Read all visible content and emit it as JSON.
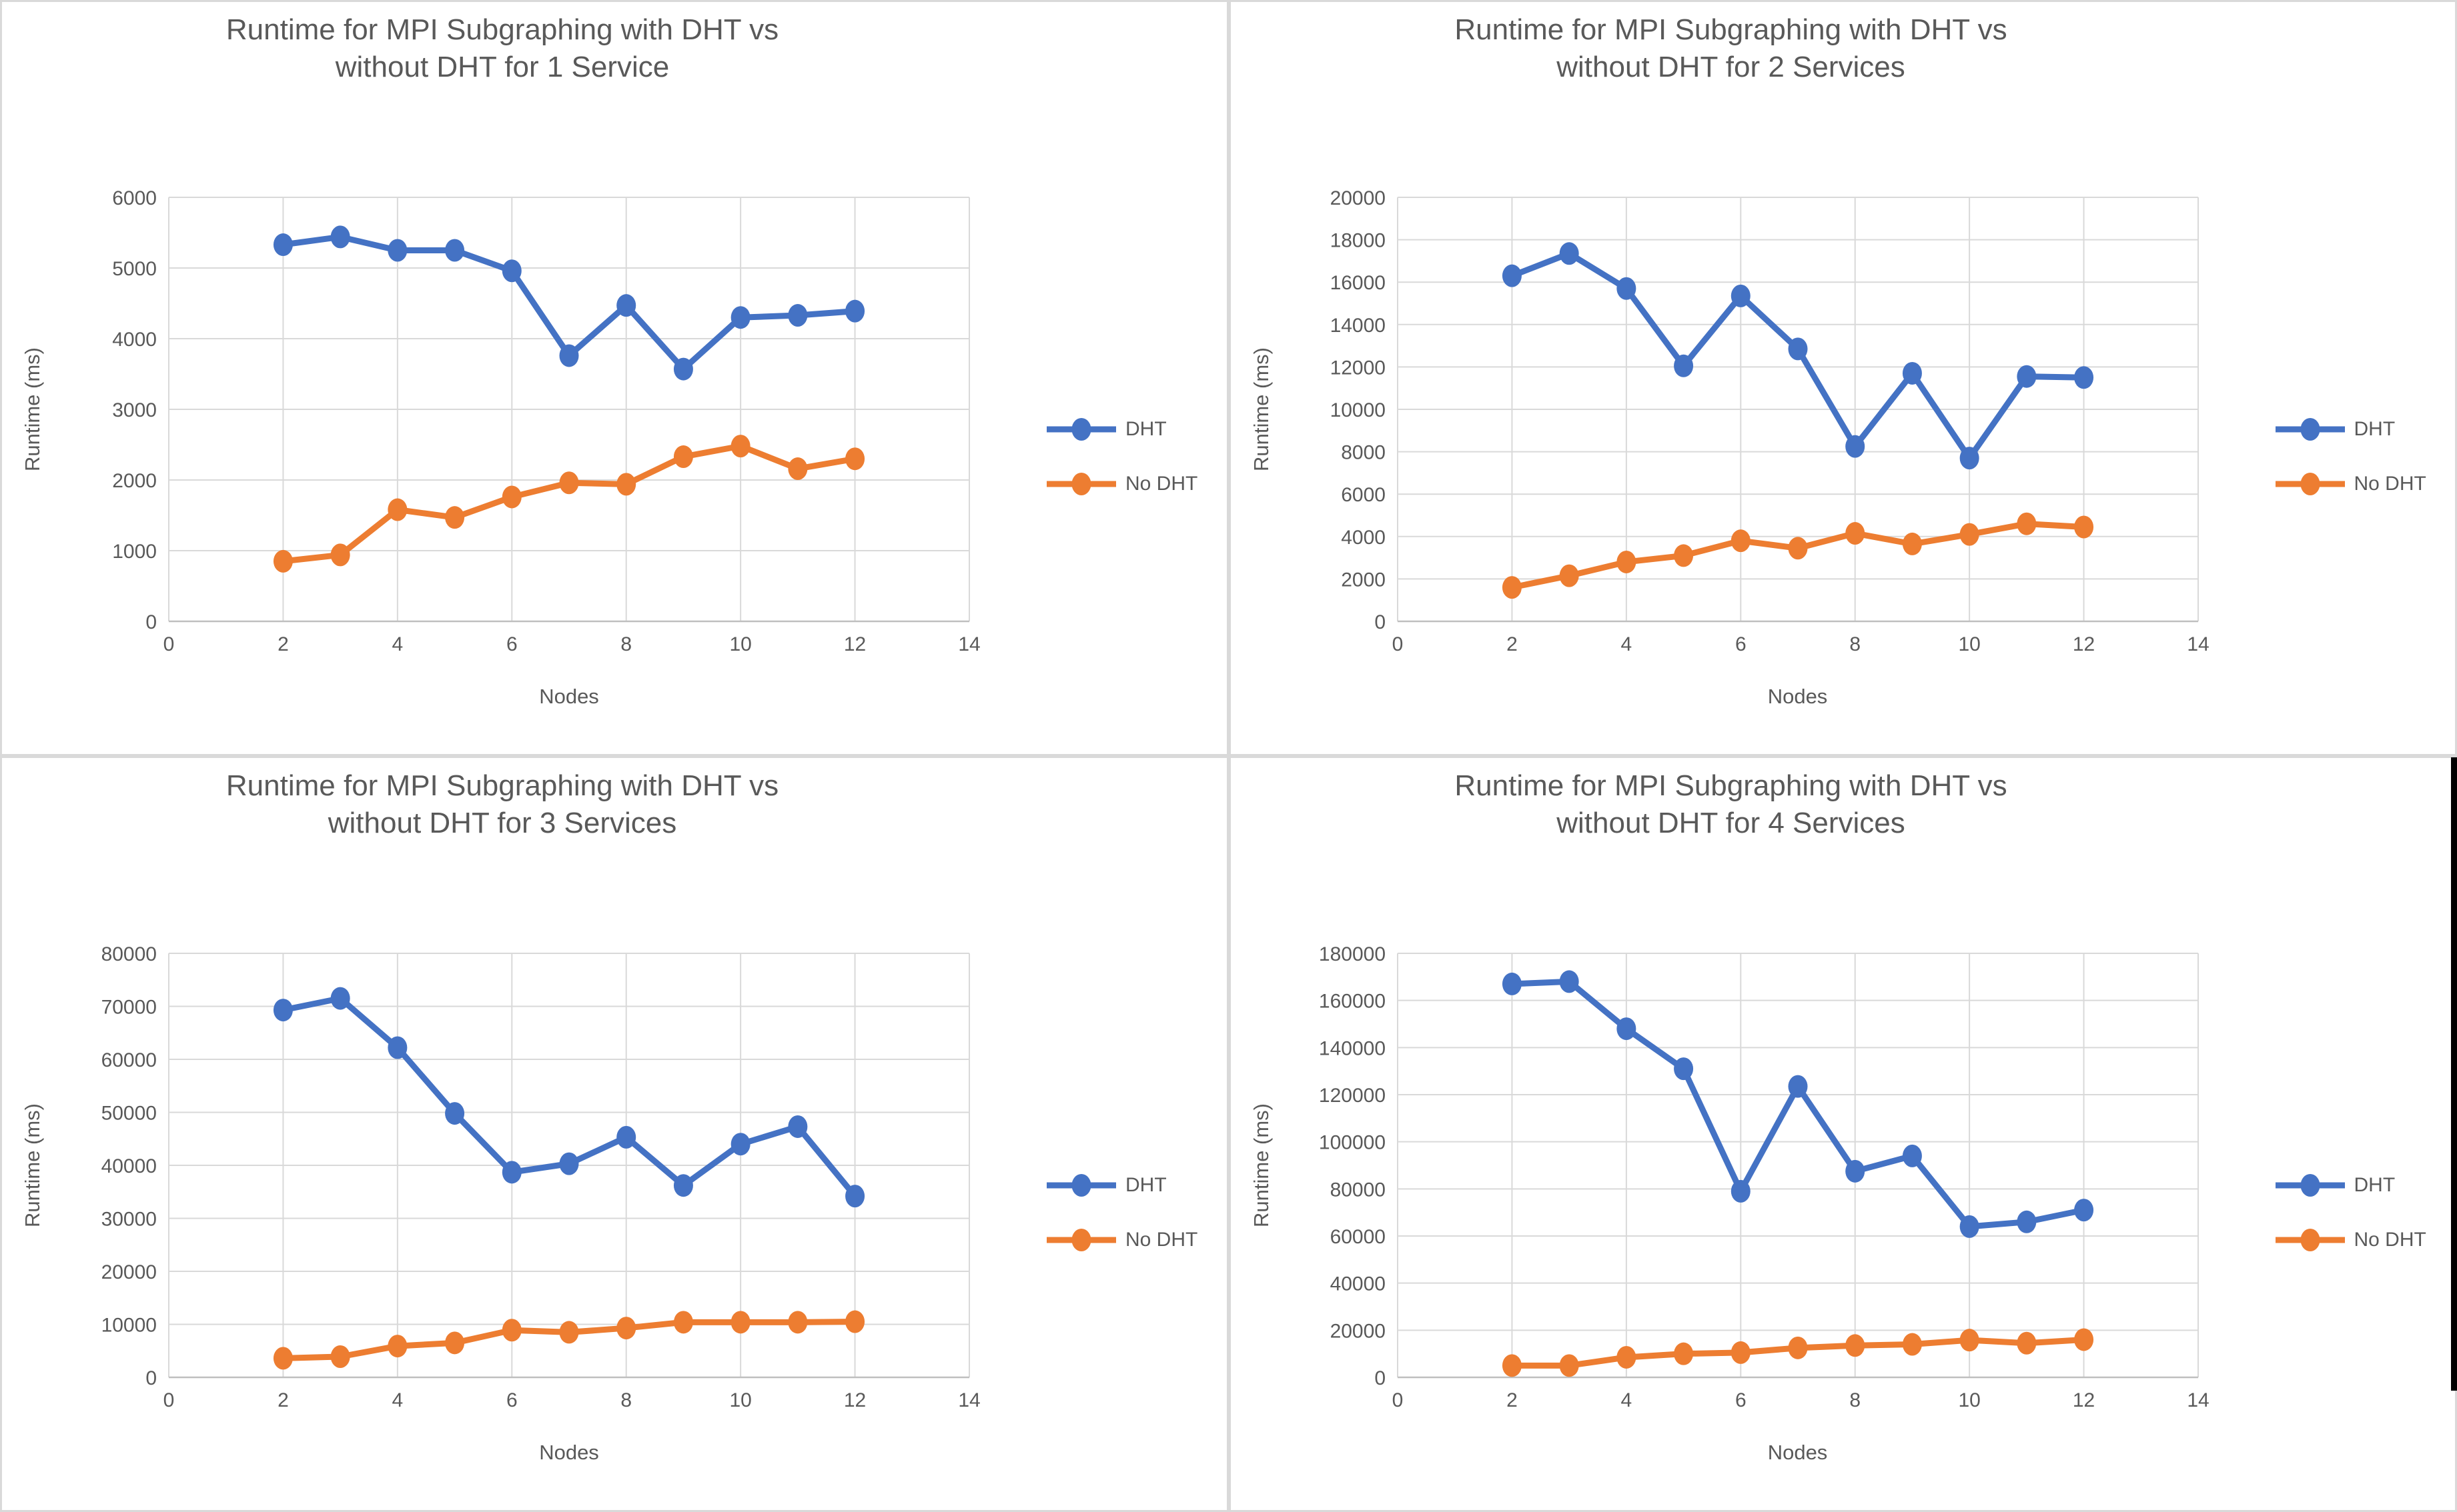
{
  "page": {
    "background_color": "#FFFFFF",
    "panel_border_color": "#D9D9D9",
    "gridline_color": "#D9D9D9",
    "axis_line_color": "#BFBFBF",
    "text_color": "#595959",
    "right_edge_bar_color": "#000000"
  },
  "chart_data": [
    {
      "type": "line",
      "title_lines": [
        "Runtime for MPI Subgraphing with DHT vs",
        "without DHT for 1 Service"
      ],
      "xlabel": "Nodes",
      "ylabel": "Runtime (ms)",
      "xlim": [
        0,
        14
      ],
      "ylim": [
        0,
        6000
      ],
      "x_ticks": [
        0,
        2,
        4,
        6,
        8,
        10,
        12,
        14
      ],
      "y_ticks": [
        0,
        1000,
        2000,
        3000,
        4000,
        5000,
        6000
      ],
      "grid": true,
      "legend_position": "right",
      "x": [
        2,
        3,
        4,
        5,
        6,
        7,
        8,
        9,
        10,
        11,
        12
      ],
      "series": [
        {
          "name": "DHT",
          "color": "#4472C4",
          "values": [
            5330,
            5440,
            5250,
            5250,
            4960,
            3760,
            4470,
            3570,
            4300,
            4330,
            4390
          ]
        },
        {
          "name": "No DHT",
          "color": "#ED7D31",
          "values": [
            850,
            940,
            1580,
            1470,
            1760,
            1960,
            1940,
            2330,
            2480,
            2160,
            2300
          ]
        }
      ]
    },
    {
      "type": "line",
      "title_lines": [
        "Runtime for MPI Subgraphing with DHT vs",
        "without DHT for 2 Services"
      ],
      "xlabel": "Nodes",
      "ylabel": "Runtime (ms)",
      "xlim": [
        0,
        14
      ],
      "ylim": [
        0,
        20000
      ],
      "x_ticks": [
        0,
        2,
        4,
        6,
        8,
        10,
        12,
        14
      ],
      "y_ticks": [
        0,
        2000,
        4000,
        6000,
        8000,
        10000,
        12000,
        14000,
        16000,
        18000,
        20000
      ],
      "grid": true,
      "legend_position": "right",
      "x": [
        2,
        3,
        4,
        5,
        6,
        7,
        8,
        9,
        10,
        11,
        12
      ],
      "series": [
        {
          "name": "DHT",
          "color": "#4472C4",
          "values": [
            16300,
            17350,
            15700,
            12050,
            15350,
            12850,
            8250,
            11700,
            7700,
            11550,
            11500
          ]
        },
        {
          "name": "No DHT",
          "color": "#ED7D31",
          "values": [
            1600,
            2150,
            2800,
            3100,
            3800,
            3450,
            4150,
            3650,
            4100,
            4600,
            4450
          ]
        }
      ]
    },
    {
      "type": "line",
      "title_lines": [
        "Runtime for MPI Subgraphing with DHT vs",
        "without DHT for 3 Services"
      ],
      "xlabel": "Nodes",
      "ylabel": "Runtime (ms)",
      "xlim": [
        0,
        14
      ],
      "ylim": [
        0,
        80000
      ],
      "x_ticks": [
        0,
        2,
        4,
        6,
        8,
        10,
        12,
        14
      ],
      "y_ticks": [
        0,
        10000,
        20000,
        30000,
        40000,
        50000,
        60000,
        70000,
        80000
      ],
      "grid": true,
      "legend_position": "right",
      "x": [
        2,
        3,
        4,
        5,
        6,
        7,
        8,
        9,
        10,
        11,
        12
      ],
      "series": [
        {
          "name": "DHT",
          "color": "#4472C4",
          "values": [
            69300,
            71500,
            62200,
            49800,
            38700,
            40300,
            45300,
            36200,
            44000,
            47300,
            34200
          ]
        },
        {
          "name": "No DHT",
          "color": "#ED7D31",
          "values": [
            3600,
            3900,
            5900,
            6500,
            8900,
            8500,
            9300,
            10400,
            10400,
            10400,
            10500
          ]
        }
      ]
    },
    {
      "type": "line",
      "title_lines": [
        "Runtime for MPI Subgraphing with DHT vs",
        "without DHT for 4 Services"
      ],
      "xlabel": "Nodes",
      "ylabel": "Runtime (ms)",
      "xlim": [
        0,
        14
      ],
      "ylim": [
        0,
        180000
      ],
      "x_ticks": [
        0,
        2,
        4,
        6,
        8,
        10,
        12,
        14
      ],
      "y_ticks": [
        0,
        20000,
        40000,
        60000,
        80000,
        100000,
        120000,
        140000,
        160000,
        180000
      ],
      "grid": true,
      "legend_position": "right",
      "x": [
        2,
        3,
        4,
        5,
        6,
        7,
        8,
        9,
        10,
        11,
        12
      ],
      "series": [
        {
          "name": "DHT",
          "color": "#4472C4",
          "values": [
            167000,
            168000,
            148000,
            131000,
            79000,
            123500,
            87500,
            94000,
            64000,
            66000,
            71000
          ]
        },
        {
          "name": "No DHT",
          "color": "#ED7D31",
          "values": [
            5000,
            5000,
            8500,
            10000,
            10500,
            12500,
            13500,
            14000,
            15800,
            14500,
            16000
          ]
        }
      ]
    }
  ]
}
